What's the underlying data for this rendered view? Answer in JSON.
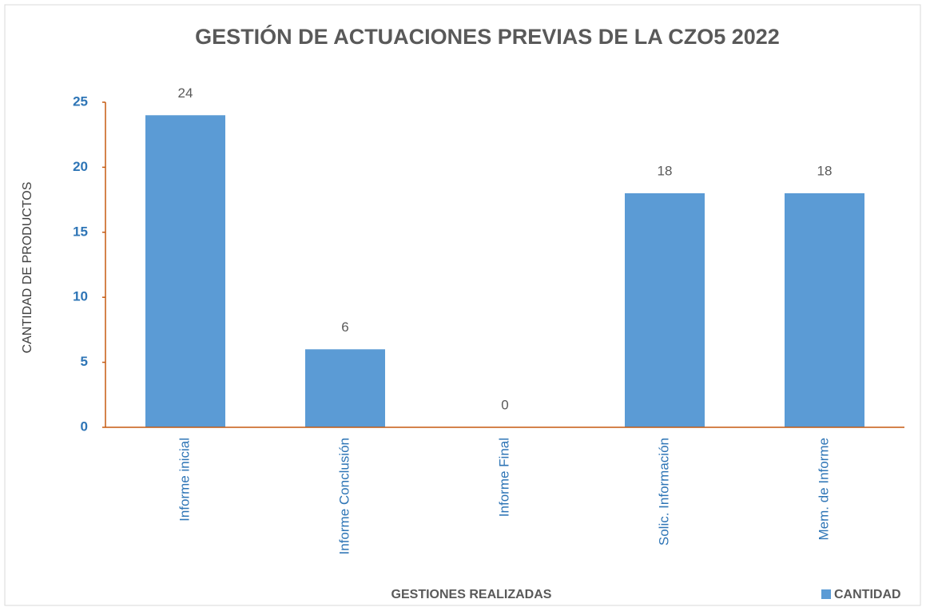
{
  "chart_data": {
    "type": "bar",
    "title": "GESTIÓN DE ACTUACIONES PREVIAS DE LA CZO5 2022",
    "x_label": "GESTIONES REALIZADAS",
    "y_label": "CANTIDAD DE PRODUCTOS",
    "categories": [
      "Informe inicial",
      "Informe Conclusión",
      "Informe Final",
      "Solic. Información",
      "Mem. de Informe"
    ],
    "series": [
      {
        "name": "CANTIDAD",
        "color": "#5b9bd5",
        "values": [
          24,
          6,
          0,
          18,
          18
        ]
      }
    ],
    "ylim": [
      0,
      25
    ],
    "yticks": [
      0,
      5,
      10,
      15,
      20,
      25
    ],
    "grid": false
  }
}
